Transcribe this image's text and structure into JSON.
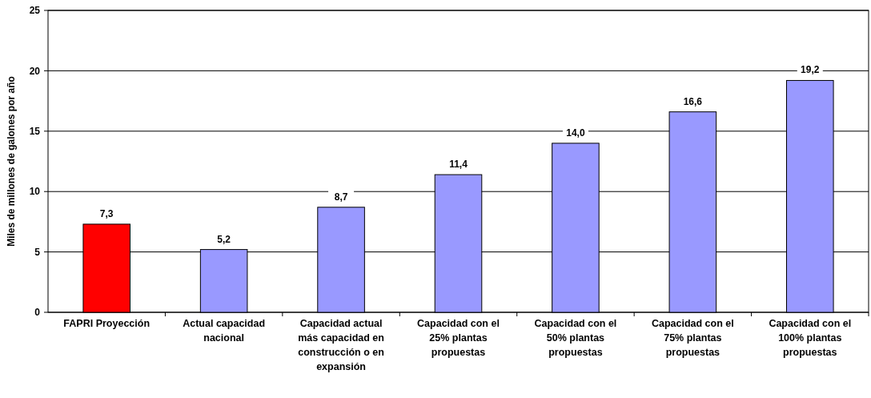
{
  "chart_data": {
    "type": "bar",
    "ylabel": "Miles de millones de galones por año",
    "categories": [
      "FAPRI Proyección",
      "Actual capacidad nacional",
      "Capacidad actual más capacidad en construcción o en expansión",
      "Capacidad con el 25% plantas propuestas",
      "Capacidad con el 50% plantas propuestas",
      "Capacidad con el 75% plantas propuestas",
      "Capacidad con el 100% plantas propuestas"
    ],
    "values": [
      7.3,
      5.2,
      8.7,
      11.4,
      14.0,
      16.6,
      19.2
    ],
    "colors": [
      "#ff0000",
      "#9999ff",
      "#9999ff",
      "#9999ff",
      "#9999ff",
      "#9999ff",
      "#9999ff"
    ],
    "value_labels": [
      "7,3",
      "5,2",
      "8,7",
      "11,4",
      "14,0",
      "16,6",
      "19,2"
    ],
    "ylim": [
      0,
      25
    ],
    "yticks": [
      0,
      5,
      10,
      15,
      20,
      25
    ],
    "grid": "y"
  }
}
